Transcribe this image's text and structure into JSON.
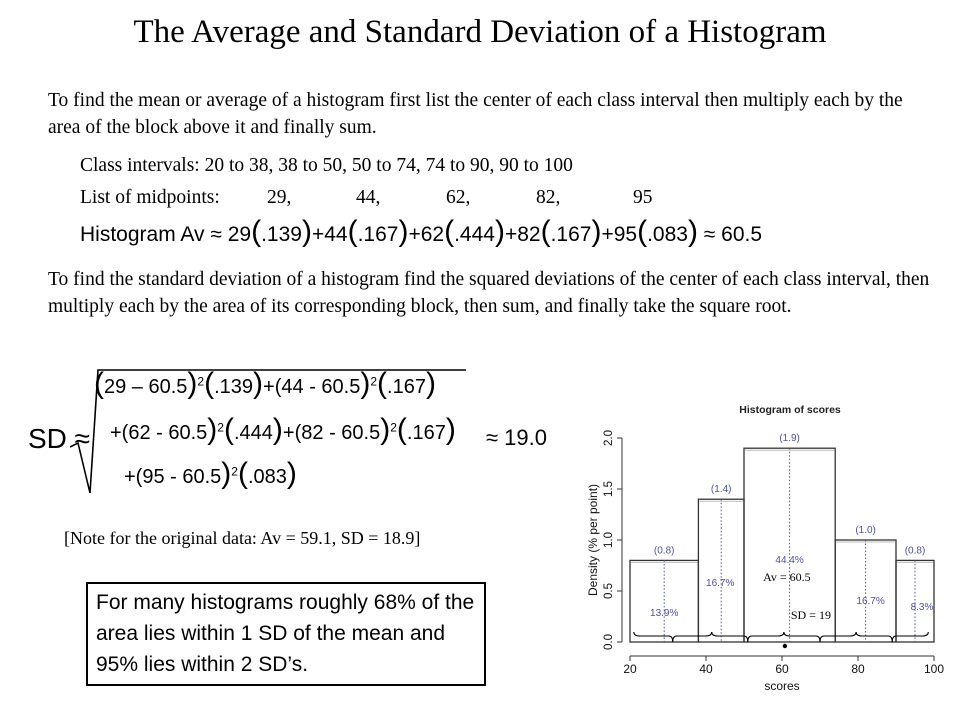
{
  "title": "The Average and Standard Deviation of a Histogram",
  "intro_paragraph": "To find the mean or average of a histogram first list the center of each class interval then multiply each by the area of the block above it and finally sum.",
  "class_intervals": {
    "label": "Class intervals:",
    "text": "20 to 38, 38 to 50, 50 to 74, 74 to 90, 90 to 100"
  },
  "midpoints": {
    "label": "List of midpoints:",
    "values": [
      "29,",
      "44,",
      "62,",
      "82,",
      "95"
    ]
  },
  "average_formula": {
    "label": "Histogram Av ≈",
    "t1_mid": "29",
    "t1_area": ".139",
    "t2_mid": "+44",
    "t2_area": ".167",
    "t3_mid": "+62",
    "t3_area": ".444",
    "t4_mid": "+82",
    "t4_area": ".167",
    "t5_mid": "+95",
    "t5_area": ".083",
    "result": "≈ 60.5"
  },
  "sd_paragraph": "To find the standard deviation of a histogram find the squared deviations of the center of each class interval, then multiply each by the area of its corresponding block, then sum, and finally take the square root.",
  "sd_formula": {
    "label": "SD ≈",
    "result": "≈ 19.0",
    "line1": {
      "a_mid": "29 – 60.5",
      "a_area": ".139",
      "b_mid": "+(44 - 60.5",
      "b_area": ".167"
    },
    "line2": {
      "a_mid": "+(62 - 60.5",
      "a_area": ".444",
      "b_mid": "+(82 - 60.5",
      "b_area": ".167"
    },
    "line3": {
      "a_mid": "+(95 - 60.5",
      "a_area": ".083"
    },
    "exponent": "2"
  },
  "note": "[Note for the original data: Av = 59.1, SD = 18.9]",
  "rule_text": "For many histograms roughly 68% of the area lies within 1 SD of the mean and 95% lies within 2 SD’s.",
  "chart_data": {
    "type": "bar",
    "title": "Histogram of scores",
    "xlabel": "scores",
    "ylabel": "Density (% per point)",
    "xlim": [
      20,
      100
    ],
    "ylim": [
      0,
      2.0
    ],
    "x_ticks": [
      "20",
      "40",
      "60",
      "80",
      "100"
    ],
    "y_ticks": [
      "0.0",
      "0.5",
      "1.0",
      "1.5",
      "2.0"
    ],
    "grid": false,
    "bins": [
      {
        "left": 20,
        "right": 38,
        "density": 0.8,
        "density_label": "(0.8)",
        "percent_label": "13.9%"
      },
      {
        "left": 38,
        "right": 50,
        "density": 1.4,
        "density_label": "(1.4)",
        "percent_label": "16.7%"
      },
      {
        "left": 50,
        "right": 74,
        "density": 1.9,
        "density_label": "(1.9)",
        "percent_label": "44.4%"
      },
      {
        "left": 74,
        "right": 90,
        "density": 1.0,
        "density_label": "(1.0)",
        "percent_label": "16.7%"
      },
      {
        "left": 90,
        "right": 100,
        "density": 0.8,
        "density_label": "(0.8)",
        "percent_label": "8.3%"
      }
    ],
    "midpoints": [
      29,
      44,
      62,
      82,
      95
    ],
    "annotations": {
      "average": {
        "text": "Av = 60.5",
        "value": 60.5
      },
      "sd": {
        "text": "SD = 19",
        "value": 19
      }
    },
    "colors": {
      "bars": "#333333",
      "labels": "#4a4fb0",
      "dotted": "#4a4fb0"
    }
  }
}
